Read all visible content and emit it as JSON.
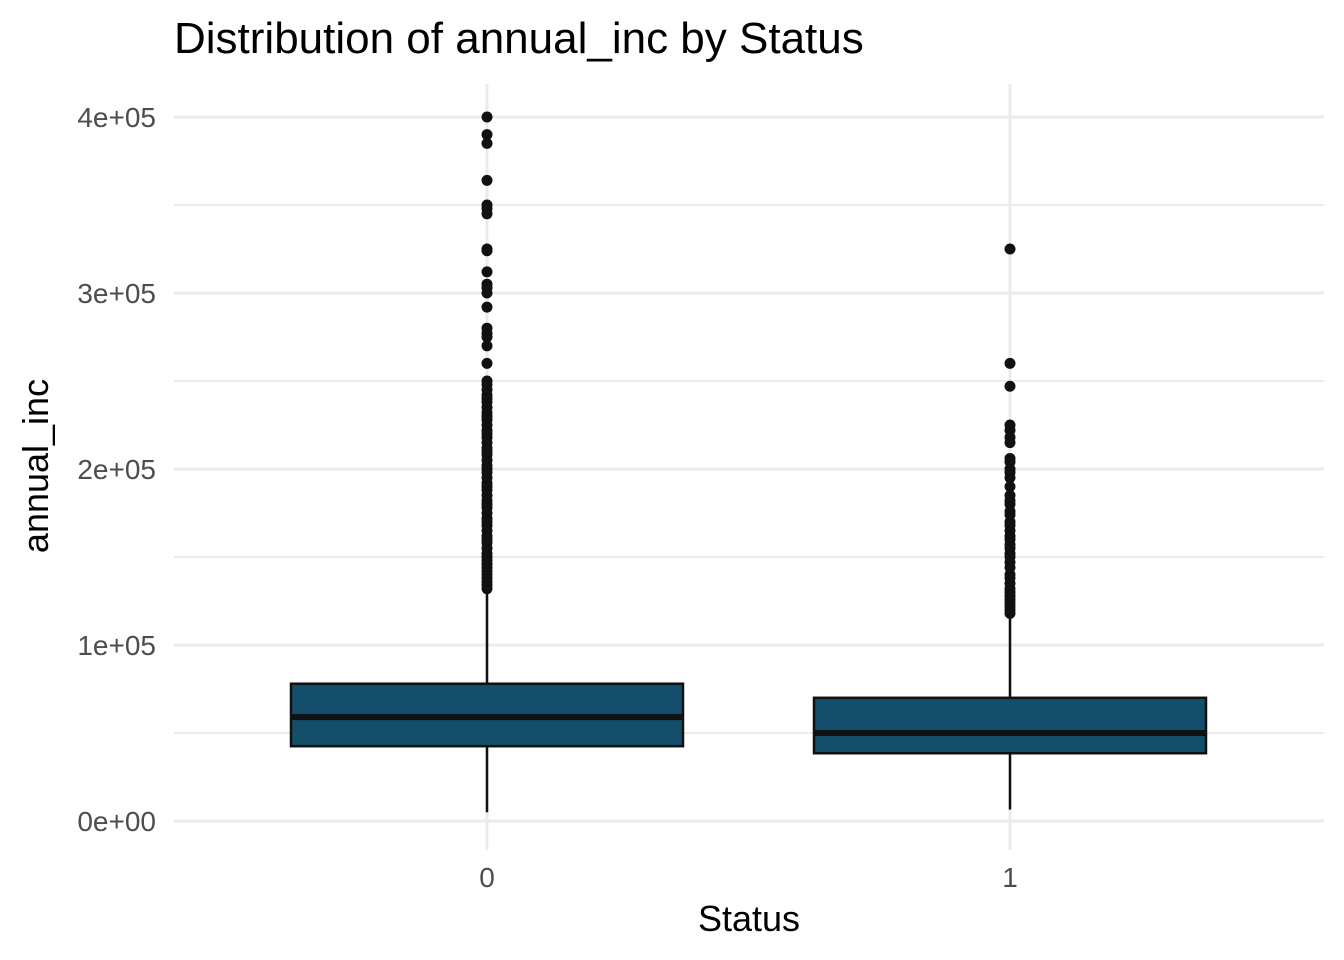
{
  "chart_data": {
    "type": "box",
    "title": "Distribution of annual_inc by Status",
    "xlabel": "Status",
    "ylabel": "annual_inc",
    "ylim": [
      0,
      400000
    ],
    "y_ticks": [
      {
        "value": 0,
        "label": "0e+00"
      },
      {
        "value": 100000,
        "label": "1e+05"
      },
      {
        "value": 200000,
        "label": "2e+05"
      },
      {
        "value": 300000,
        "label": "3e+05"
      },
      {
        "value": 400000,
        "label": "4e+05"
      }
    ],
    "y_minor_ticks": [
      50000,
      150000,
      250000,
      350000
    ],
    "grid": true,
    "colors": {
      "box_fill": "#134e6a",
      "box_stroke": "#111111",
      "median": "#111111",
      "outlier": "#111111"
    },
    "categories": [
      "0",
      "1"
    ],
    "boxes": [
      {
        "category": "0",
        "whisker_low": 5000,
        "q1": 42500,
        "median": 59000,
        "q3": 78000,
        "whisker_high": 131000,
        "outliers": [
          400000,
          390000,
          385000,
          364000,
          350000,
          348000,
          345000,
          325000,
          324000,
          312000,
          305000,
          303000,
          300000,
          292000,
          280000,
          277000,
          275000,
          270000,
          260000,
          250000,
          248000,
          245000,
          242000,
          240000,
          238000,
          235000,
          232000,
          230000,
          228000,
          225000,
          222000,
          220000,
          218000,
          215000,
          212000,
          210000,
          208000,
          205000,
          202000,
          200000,
          198000,
          195000,
          192000,
          190000,
          188000,
          185000,
          182000,
          180000,
          178000,
          175000,
          172000,
          170000,
          168000,
          165000,
          162000,
          160000,
          158000,
          155000,
          152000,
          150000,
          148000,
          146000,
          144000,
          142000,
          140000,
          138000,
          136000,
          134000,
          132000
        ]
      },
      {
        "category": "1",
        "whisker_low": 6500,
        "q1": 38500,
        "median": 50000,
        "q3": 70000,
        "whisker_high": 117000,
        "outliers": [
          325000,
          260000,
          247000,
          225000,
          222000,
          218000,
          215000,
          206000,
          204000,
          200000,
          198000,
          195000,
          190000,
          185000,
          182000,
          180000,
          176000,
          174000,
          170000,
          168000,
          165000,
          162000,
          160000,
          157000,
          155000,
          152000,
          150000,
          147000,
          144000,
          140000,
          138000,
          135000,
          132000,
          130000,
          128000,
          126000,
          124000,
          122000,
          120000,
          118000
        ]
      }
    ]
  }
}
